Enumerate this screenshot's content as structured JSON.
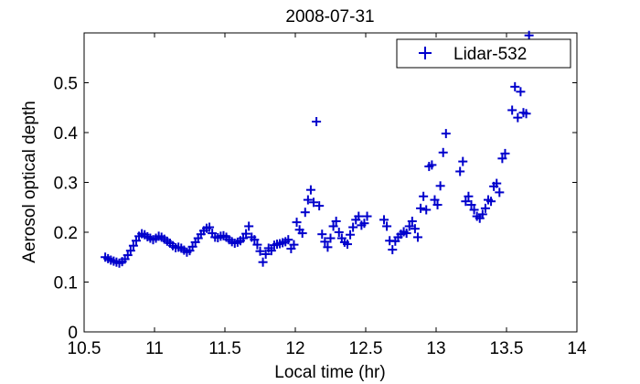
{
  "chart_data": {
    "type": "scatter",
    "title": "2008-07-31",
    "xlabel": "Local time (hr)",
    "ylabel": "Aerosol optical depth",
    "xlim": [
      10.5,
      14
    ],
    "ylim": [
      0,
      0.6
    ],
    "xticks": [
      10.5,
      11,
      11.5,
      12,
      12.5,
      13,
      13.5,
      14
    ],
    "xtick_labels": [
      "10.5",
      "11",
      "11.5",
      "12",
      "12.5",
      "13",
      "13.5",
      "14"
    ],
    "yticks": [
      0,
      0.1,
      0.2,
      0.3,
      0.4,
      0.5
    ],
    "ytick_labels": [
      "0",
      "0.1",
      "0.2",
      "0.3",
      "0.4",
      "0.5"
    ],
    "grid": false,
    "legend_position": "top-right",
    "series": [
      {
        "name": "Lidar-532",
        "marker": "+",
        "color": "#0000cc",
        "points": [
          [
            10.65,
            0.15
          ],
          [
            10.67,
            0.147
          ],
          [
            10.69,
            0.144
          ],
          [
            10.71,
            0.142
          ],
          [
            10.73,
            0.14
          ],
          [
            10.75,
            0.138
          ],
          [
            10.77,
            0.141
          ],
          [
            10.79,
            0.146
          ],
          [
            10.81,
            0.154
          ],
          [
            10.83,
            0.163
          ],
          [
            10.85,
            0.173
          ],
          [
            10.87,
            0.183
          ],
          [
            10.89,
            0.192
          ],
          [
            10.91,
            0.197
          ],
          [
            10.93,
            0.195
          ],
          [
            10.95,
            0.191
          ],
          [
            10.97,
            0.188
          ],
          [
            10.99,
            0.185
          ],
          [
            11.01,
            0.188
          ],
          [
            11.03,
            0.192
          ],
          [
            11.05,
            0.19
          ],
          [
            11.07,
            0.186
          ],
          [
            11.09,
            0.182
          ],
          [
            11.11,
            0.178
          ],
          [
            11.13,
            0.173
          ],
          [
            11.15,
            0.169
          ],
          [
            11.17,
            0.17
          ],
          [
            11.19,
            0.168
          ],
          [
            11.21,
            0.164
          ],
          [
            11.23,
            0.16
          ],
          [
            11.25,
            0.163
          ],
          [
            11.27,
            0.171
          ],
          [
            11.29,
            0.18
          ],
          [
            11.31,
            0.188
          ],
          [
            11.33,
            0.196
          ],
          [
            11.35,
            0.203
          ],
          [
            11.37,
            0.208
          ],
          [
            11.39,
            0.21
          ],
          [
            11.41,
            0.198
          ],
          [
            11.43,
            0.19
          ],
          [
            11.45,
            0.189
          ],
          [
            11.47,
            0.192
          ],
          [
            11.49,
            0.193
          ],
          [
            11.51,
            0.19
          ],
          [
            11.53,
            0.185
          ],
          [
            11.55,
            0.181
          ],
          [
            11.57,
            0.178
          ],
          [
            11.59,
            0.18
          ],
          [
            11.61,
            0.183
          ],
          [
            11.63,
            0.188
          ],
          [
            11.65,
            0.197
          ],
          [
            11.67,
            0.212
          ],
          [
            11.69,
            0.19
          ],
          [
            11.71,
            0.185
          ],
          [
            11.73,
            0.175
          ],
          [
            11.75,
            0.162
          ],
          [
            11.77,
            0.14
          ],
          [
            11.79,
            0.156
          ],
          [
            11.81,
            0.168
          ],
          [
            11.83,
            0.163
          ],
          [
            11.85,
            0.174
          ],
          [
            11.87,
            0.176
          ],
          [
            11.89,
            0.177
          ],
          [
            11.91,
            0.179
          ],
          [
            11.93,
            0.181
          ],
          [
            11.95,
            0.185
          ],
          [
            11.97,
            0.167
          ],
          [
            11.99,
            0.175
          ],
          [
            12.01,
            0.22
          ],
          [
            12.03,
            0.205
          ],
          [
            12.05,
            0.198
          ],
          [
            12.07,
            0.24
          ],
          [
            12.09,
            0.265
          ],
          [
            12.11,
            0.285
          ],
          [
            12.13,
            0.26
          ],
          [
            12.15,
            0.422
          ],
          [
            12.17,
            0.253
          ],
          [
            12.19,
            0.196
          ],
          [
            12.21,
            0.181
          ],
          [
            12.23,
            0.17
          ],
          [
            12.25,
            0.188
          ],
          [
            12.27,
            0.212
          ],
          [
            12.29,
            0.222
          ],
          [
            12.31,
            0.2
          ],
          [
            12.33,
            0.188
          ],
          [
            12.35,
            0.18
          ],
          [
            12.37,
            0.176
          ],
          [
            12.39,
            0.195
          ],
          [
            12.41,
            0.21
          ],
          [
            12.43,
            0.225
          ],
          [
            12.45,
            0.232
          ],
          [
            12.47,
            0.214
          ],
          [
            12.49,
            0.218
          ],
          [
            12.51,
            0.232
          ],
          [
            12.63,
            0.225
          ],
          [
            12.65,
            0.212
          ],
          [
            12.67,
            0.183
          ],
          [
            12.69,
            0.165
          ],
          [
            12.71,
            0.182
          ],
          [
            12.73,
            0.19
          ],
          [
            12.75,
            0.196
          ],
          [
            12.77,
            0.201
          ],
          [
            12.79,
            0.198
          ],
          [
            12.81,
            0.212
          ],
          [
            12.83,
            0.222
          ],
          [
            12.85,
            0.207
          ],
          [
            12.87,
            0.19
          ],
          [
            12.89,
            0.248
          ],
          [
            12.91,
            0.272
          ],
          [
            12.93,
            0.245
          ],
          [
            12.95,
            0.332
          ],
          [
            12.97,
            0.335
          ],
          [
            12.99,
            0.265
          ],
          [
            13.01,
            0.255
          ],
          [
            13.03,
            0.293
          ],
          [
            13.05,
            0.36
          ],
          [
            13.07,
            0.398
          ],
          [
            13.17,
            0.322
          ],
          [
            13.19,
            0.342
          ],
          [
            13.21,
            0.262
          ],
          [
            13.23,
            0.272
          ],
          [
            13.25,
            0.255
          ],
          [
            13.27,
            0.245
          ],
          [
            13.29,
            0.232
          ],
          [
            13.31,
            0.228
          ],
          [
            13.33,
            0.236
          ],
          [
            13.35,
            0.248
          ],
          [
            13.37,
            0.265
          ],
          [
            13.39,
            0.262
          ],
          [
            13.41,
            0.292
          ],
          [
            13.43,
            0.298
          ],
          [
            13.45,
            0.28
          ],
          [
            13.47,
            0.348
          ],
          [
            13.49,
            0.358
          ],
          [
            13.54,
            0.445
          ],
          [
            13.56,
            0.492
          ],
          [
            13.58,
            0.43
          ],
          [
            13.6,
            0.482
          ],
          [
            13.62,
            0.44
          ],
          [
            13.64,
            0.438
          ],
          [
            13.66,
            0.595
          ]
        ]
      }
    ]
  }
}
